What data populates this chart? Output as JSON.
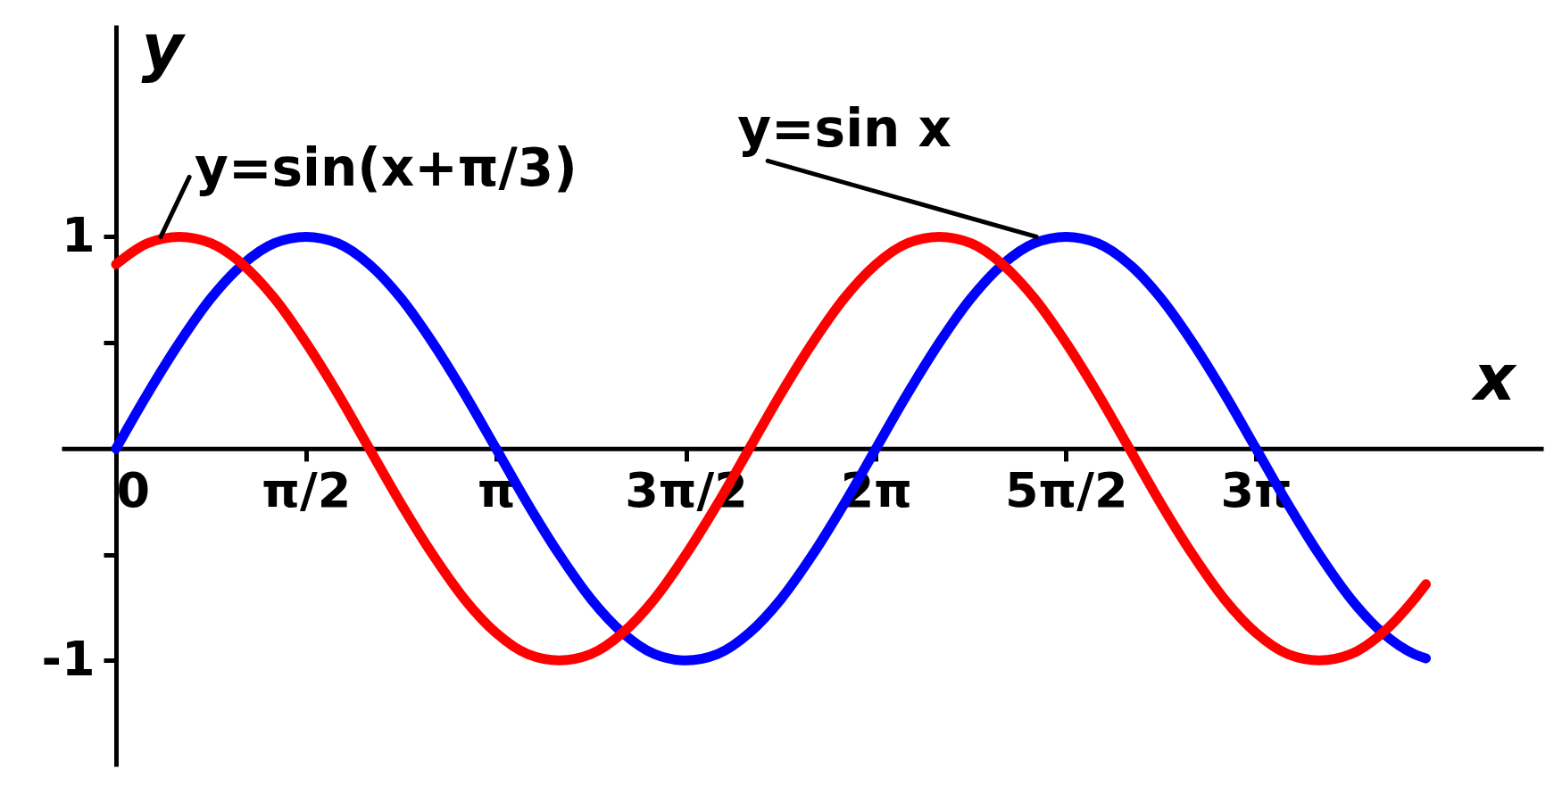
{
  "chart_data": {
    "type": "line",
    "xlabel": "x",
    "ylabel": "y",
    "x": [
      0,
      0.262,
      0.524,
      0.785,
      1.047,
      1.309,
      1.571,
      1.833,
      2.094,
      2.356,
      2.618,
      2.88,
      3.142,
      3.403,
      3.665,
      3.927,
      4.189,
      4.451,
      4.712,
      4.974,
      5.236,
      5.498,
      5.76,
      6.021,
      6.283,
      6.545,
      6.807,
      7.069,
      7.33,
      7.592,
      7.854,
      8.116,
      8.378,
      8.639,
      8.901,
      9.163,
      9.425,
      9.687,
      9.948,
      10.21,
      10.472,
      10.734,
      10.83
    ],
    "series": [
      {
        "color": "#0000ff",
        "values": [
          0,
          0.26,
          0.5,
          0.71,
          0.87,
          0.97,
          1,
          0.97,
          0.87,
          0.71,
          0.5,
          0.26,
          0,
          -0.26,
          -0.5,
          -0.71,
          -0.87,
          -0.97,
          -1,
          -0.97,
          -0.87,
          -0.71,
          -0.5,
          -0.26,
          0,
          0.26,
          0.5,
          0.71,
          0.87,
          0.97,
          1,
          0.97,
          0.87,
          0.71,
          0.5,
          0.26,
          0,
          -0.26,
          -0.5,
          -0.71,
          -0.87,
          -0.97,
          -0.99
        ]
      },
      {
        "color": "#ff0000",
        "values": [
          0.87,
          0.97,
          1,
          0.97,
          0.87,
          0.71,
          0.5,
          0.26,
          0,
          -0.26,
          -0.5,
          -0.71,
          -0.87,
          -0.97,
          -1,
          -0.97,
          -0.87,
          -0.71,
          -0.5,
          -0.26,
          0,
          0.26,
          0.5,
          0.71,
          0.87,
          0.97,
          1,
          0.97,
          0.87,
          0.71,
          0.5,
          0.26,
          0,
          -0.26,
          -0.5,
          -0.71,
          -0.87,
          -0.97,
          -1,
          -0.97,
          -0.87,
          -0.71,
          -0.64
        ]
      }
    ],
    "xlim": [
      -0.45,
      11.8
    ],
    "ylim": [
      -1.5,
      2.0
    ],
    "xticks": [
      0,
      {
        "value": 1.571,
        "label": "π/2"
      },
      {
        "value": 3.142,
        "label": "π"
      },
      {
        "value": 4.712,
        "label": "3π/2"
      },
      {
        "value": 6.283,
        "label": "2π"
      },
      {
        "value": 7.854,
        "label": "5π/2"
      },
      {
        "value": 9.425,
        "label": "3π"
      }
    ],
    "yticks": [
      -1,
      {
        "value": -0.5,
        "label": null
      },
      {
        "value": 0.5,
        "label": null
      },
      1
    ],
    "annotations": [
      {
        "text": "y=sin(x+π/3)",
        "x": 0.37,
        "y": 1.0
      },
      {
        "text": "y=sin x",
        "x": 7.61,
        "y": 1.0
      }
    ],
    "grid": false
  }
}
